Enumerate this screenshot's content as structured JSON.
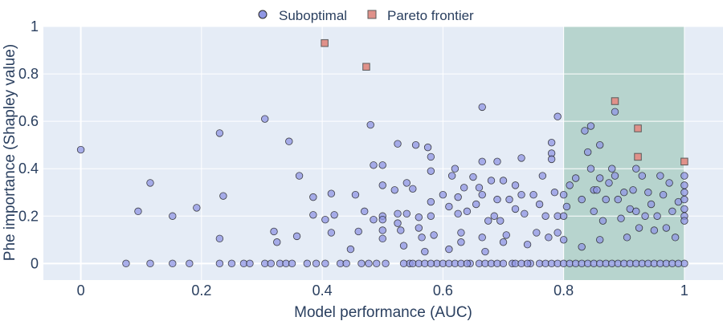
{
  "chart_data": {
    "type": "scatter",
    "xlabel": "Model performance (AUC)",
    "ylabel": "Phe importance (Shapley value)",
    "xlim": [
      -0.062,
      1.064
    ],
    "ylim": [
      -0.07,
      1.0
    ],
    "x_ticks": [
      0,
      0.2,
      0.4,
      0.6,
      0.8,
      1
    ],
    "x_tick_labels": [
      "0",
      "0.2",
      "0.4",
      "0.6",
      "0.8",
      "1"
    ],
    "y_ticks": [
      0,
      0.2,
      0.4,
      0.6,
      0.8,
      1
    ],
    "y_tick_labels": [
      "0",
      "0.2",
      "0.4",
      "0.6",
      "0.8",
      "1"
    ],
    "grid": true,
    "legend_position": "top-center",
    "highlight_region": {
      "x": [
        0.8,
        1.0
      ],
      "color": "#2e8b57"
    },
    "colors": {
      "plot_background": "#e5ecf6",
      "grid": "#ffffff",
      "suboptimal_fill": "#8f96e3",
      "suboptimal_stroke": "#1a1a1a",
      "pareto_fill": "#e0918a",
      "pareto_stroke": "#5a5a5a",
      "highlight": "#2e8b57"
    },
    "series": [
      {
        "name": "Suboptimal",
        "marker": "circle",
        "points": [
          [
            0.0,
            0.48
          ],
          [
            0.075,
            0
          ],
          [
            0.095,
            0.22
          ],
          [
            0.115,
            0.34
          ],
          [
            0.115,
            0
          ],
          [
            0.152,
            0.2
          ],
          [
            0.152,
            0
          ],
          [
            0.18,
            0
          ],
          [
            0.192,
            0.235
          ],
          [
            0.23,
            0.55
          ],
          [
            0.23,
            0.105
          ],
          [
            0.23,
            0
          ],
          [
            0.236,
            0.285
          ],
          [
            0.25,
            0
          ],
          [
            0.27,
            0
          ],
          [
            0.28,
            0
          ],
          [
            0.305,
            0.61
          ],
          [
            0.305,
            0
          ],
          [
            0.315,
            0
          ],
          [
            0.32,
            0.135
          ],
          [
            0.325,
            0.09
          ],
          [
            0.33,
            0
          ],
          [
            0.34,
            0
          ],
          [
            0.345,
            0.515
          ],
          [
            0.35,
            0
          ],
          [
            0.358,
            0.115
          ],
          [
            0.362,
            0.37
          ],
          [
            0.375,
            0
          ],
          [
            0.385,
            0.205
          ],
          [
            0.385,
            0.28
          ],
          [
            0.39,
            0
          ],
          [
            0.405,
            0.185
          ],
          [
            0.405,
            0
          ],
          [
            0.415,
            0.295
          ],
          [
            0.415,
            0.13
          ],
          [
            0.42,
            0.205
          ],
          [
            0.43,
            0
          ],
          [
            0.44,
            0
          ],
          [
            0.447,
            0.06
          ],
          [
            0.455,
            0.29
          ],
          [
            0.46,
            0.135
          ],
          [
            0.465,
            0
          ],
          [
            0.47,
            0.22
          ],
          [
            0.477,
            0
          ],
          [
            0.48,
            0.585
          ],
          [
            0.485,
            0.415
          ],
          [
            0.485,
            0.185
          ],
          [
            0.49,
            0
          ],
          [
            0.5,
            0.415
          ],
          [
            0.5,
            0.33
          ],
          [
            0.5,
            0.2
          ],
          [
            0.5,
            0.185
          ],
          [
            0.5,
            0.14
          ],
          [
            0.5,
            0.105
          ],
          [
            0.505,
            0
          ],
          [
            0.52,
            0.31
          ],
          [
            0.525,
            0.505
          ],
          [
            0.525,
            0.21
          ],
          [
            0.525,
            0.17
          ],
          [
            0.53,
            0.14
          ],
          [
            0.535,
            0.075
          ],
          [
            0.54,
            0.21
          ],
          [
            0.54,
            0.34
          ],
          [
            0.545,
            0
          ],
          [
            0.55,
            0.315
          ],
          [
            0.555,
            0.5
          ],
          [
            0.56,
            0.195
          ],
          [
            0.56,
            0.15
          ],
          [
            0.565,
            0.11
          ],
          [
            0.57,
            0.05
          ],
          [
            0.575,
            0.49
          ],
          [
            0.58,
            0.45
          ],
          [
            0.58,
            0.39
          ],
          [
            0.58,
            0.26
          ],
          [
            0.58,
            0.2
          ],
          [
            0.585,
            0.12
          ],
          [
            0.59,
            0
          ],
          [
            0.6,
            0.29
          ],
          [
            0.61,
            0.24
          ],
          [
            0.61,
            0.06
          ],
          [
            0.615,
            0.37
          ],
          [
            0.62,
            0.4
          ],
          [
            0.625,
            0.28
          ],
          [
            0.625,
            0.21
          ],
          [
            0.63,
            0.13
          ],
          [
            0.63,
            0.09
          ],
          [
            0.635,
            0.32
          ],
          [
            0.64,
            0.22
          ],
          [
            0.645,
            0
          ],
          [
            0.65,
            0.365
          ],
          [
            0.655,
            0.25
          ],
          [
            0.66,
            0.32
          ],
          [
            0.665,
            0.66
          ],
          [
            0.665,
            0.43
          ],
          [
            0.665,
            0.29
          ],
          [
            0.665,
            0.11
          ],
          [
            0.67,
            0.05
          ],
          [
            0.675,
            0.18
          ],
          [
            0.68,
            0.35
          ],
          [
            0.685,
            0.2
          ],
          [
            0.69,
            0.27
          ],
          [
            0.69,
            0.43
          ],
          [
            0.695,
            0.18
          ],
          [
            0.7,
            0.09
          ],
          [
            0.7,
            0.35
          ],
          [
            0.705,
            0.12
          ],
          [
            0.71,
            0.27
          ],
          [
            0.715,
            0
          ],
          [
            0.72,
            0.33
          ],
          [
            0.72,
            0.23
          ],
          [
            0.73,
            0.445
          ],
          [
            0.73,
            0.29
          ],
          [
            0.735,
            0.21
          ],
          [
            0.74,
            0.08
          ],
          [
            0.745,
            0
          ],
          [
            0.75,
            0.29
          ],
          [
            0.755,
            0.13
          ],
          [
            0.76,
            0.25
          ],
          [
            0.765,
            0.37
          ],
          [
            0.77,
            0.2
          ],
          [
            0.775,
            0.11
          ],
          [
            0.78,
            0.51
          ],
          [
            0.78,
            0.465
          ],
          [
            0.78,
            0.44
          ],
          [
            0.785,
            0.3
          ],
          [
            0.79,
            0.62
          ],
          [
            0.79,
            0.2
          ],
          [
            0.79,
            0.13
          ],
          [
            0.8,
            0.29
          ],
          [
            0.8,
            0.2
          ],
          [
            0.8,
            0.1
          ],
          [
            0.805,
            0.24
          ],
          [
            0.81,
            0.33
          ],
          [
            0.82,
            0.36
          ],
          [
            0.83,
            0.27
          ],
          [
            0.83,
            0.07
          ],
          [
            0.835,
            0.56
          ],
          [
            0.84,
            0.47
          ],
          [
            0.845,
            0.58
          ],
          [
            0.845,
            0.4
          ],
          [
            0.85,
            0.31
          ],
          [
            0.85,
            0.22
          ],
          [
            0.855,
            0.31
          ],
          [
            0.86,
            0.5
          ],
          [
            0.86,
            0.36
          ],
          [
            0.86,
            0.1
          ],
          [
            0.865,
            0.18
          ],
          [
            0.87,
            0.27
          ],
          [
            0.875,
            0.34
          ],
          [
            0.88,
            0.4
          ],
          [
            0.885,
            0.64
          ],
          [
            0.885,
            0.37
          ],
          [
            0.89,
            0.27
          ],
          [
            0.895,
            0.19
          ],
          [
            0.9,
            0.3
          ],
          [
            0.905,
            0.11
          ],
          [
            0.91,
            0.23
          ],
          [
            0.915,
            0.31
          ],
          [
            0.92,
            0.4
          ],
          [
            0.92,
            0.22
          ],
          [
            0.925,
            0.15
          ],
          [
            0.93,
            0.37
          ],
          [
            0.935,
            0.2
          ],
          [
            0.94,
            0.3
          ],
          [
            0.945,
            0.25
          ],
          [
            0.95,
            0.14
          ],
          [
            0.955,
            0.2
          ],
          [
            0.96,
            0.37
          ],
          [
            0.965,
            0.29
          ],
          [
            0.97,
            0.15
          ],
          [
            0.975,
            0.34
          ],
          [
            0.98,
            0.22
          ],
          [
            0.985,
            0.11
          ],
          [
            0.99,
            0.26
          ],
          [
            1.0,
            0.37
          ],
          [
            1.0,
            0.33
          ],
          [
            1.0,
            0.3
          ],
          [
            1.0,
            0.27
          ],
          [
            1.0,
            0.23
          ],
          [
            1.0,
            0.2
          ],
          [
            1.0,
            0.18
          ],
          [
            1.0,
            0
          ],
          [
            0.535,
            0
          ],
          [
            0.55,
            0
          ],
          [
            0.56,
            0
          ],
          [
            0.57,
            0
          ],
          [
            0.58,
            0
          ],
          [
            0.6,
            0
          ],
          [
            0.61,
            0
          ],
          [
            0.62,
            0
          ],
          [
            0.63,
            0
          ],
          [
            0.64,
            0
          ],
          [
            0.66,
            0
          ],
          [
            0.67,
            0
          ],
          [
            0.68,
            0
          ],
          [
            0.69,
            0
          ],
          [
            0.7,
            0
          ],
          [
            0.72,
            0
          ],
          [
            0.73,
            0
          ],
          [
            0.74,
            0
          ],
          [
            0.76,
            0
          ],
          [
            0.77,
            0
          ],
          [
            0.78,
            0
          ],
          [
            0.79,
            0
          ],
          [
            0.8,
            0
          ],
          [
            0.81,
            0
          ],
          [
            0.82,
            0
          ],
          [
            0.83,
            0
          ],
          [
            0.84,
            0
          ],
          [
            0.85,
            0
          ],
          [
            0.86,
            0
          ],
          [
            0.87,
            0
          ],
          [
            0.88,
            0
          ],
          [
            0.89,
            0
          ],
          [
            0.9,
            0
          ],
          [
            0.91,
            0
          ],
          [
            0.92,
            0
          ],
          [
            0.93,
            0
          ],
          [
            0.94,
            0
          ],
          [
            0.95,
            0
          ],
          [
            0.96,
            0
          ],
          [
            0.97,
            0
          ],
          [
            0.98,
            0
          ],
          [
            0.99,
            0
          ]
        ]
      },
      {
        "name": "Pareto frontier",
        "marker": "square",
        "points": [
          [
            0.404,
            0.93
          ],
          [
            0.473,
            0.83
          ],
          [
            0.885,
            0.685
          ],
          [
            0.923,
            0.57
          ],
          [
            0.923,
            0.45
          ],
          [
            1.0,
            0.43
          ]
        ]
      }
    ]
  }
}
